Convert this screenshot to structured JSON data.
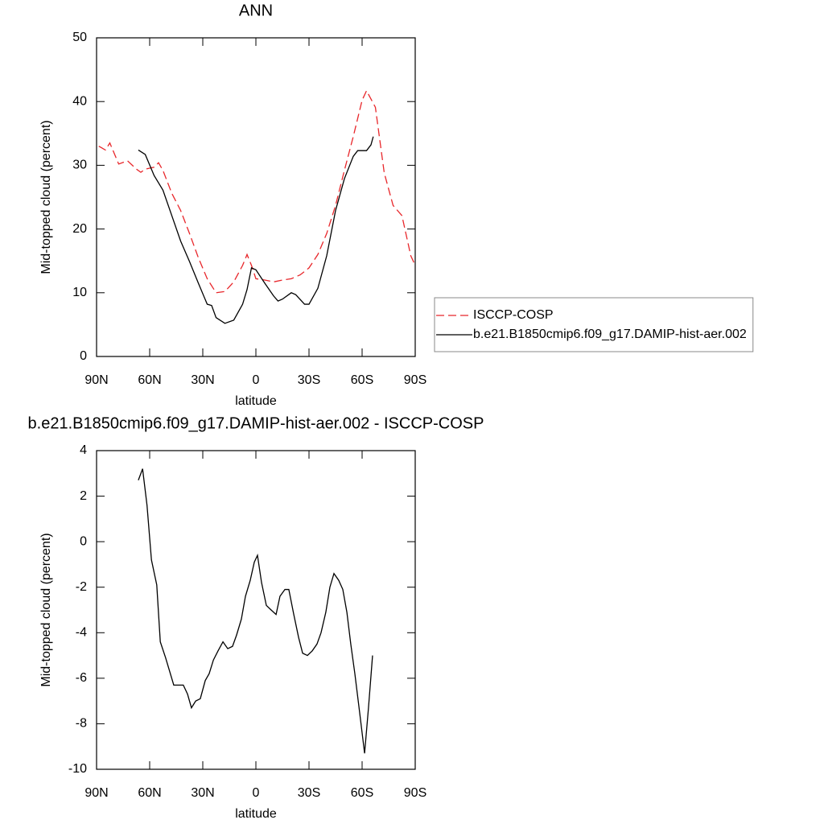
{
  "chart_data": [
    {
      "type": "line",
      "title": "ANN",
      "xlabel": "latitude",
      "ylabel": "Mid-topped cloud (percent)",
      "xlim": [
        90,
        -90
      ],
      "xticks": [
        {
          "value": 90,
          "label": "90N"
        },
        {
          "value": 60,
          "label": "60N"
        },
        {
          "value": 30,
          "label": "30N"
        },
        0,
        {
          "value": -30,
          "label": "30S"
        },
        {
          "value": -60,
          "label": "60S"
        },
        {
          "value": -90,
          "label": "90S"
        }
      ],
      "ylim": [
        0,
        50
      ],
      "yticks": [
        0,
        10,
        20,
        30,
        40,
        50
      ],
      "legend": "outside-right",
      "series": [
        {
          "name": "ISCCP-COSP",
          "color": "#e8262a",
          "dash": "dashed",
          "x": [
            88.75,
            85,
            82.5,
            77.5,
            72.5,
            67.5,
            65,
            62.5,
            57.5,
            55,
            52.5,
            47.5,
            42.5,
            37.5,
            32.5,
            27.5,
            22.5,
            17.5,
            12.5,
            7.5,
            5,
            2.5,
            0,
            -5,
            -10,
            -15,
            -20,
            -25,
            -30,
            -35,
            -40,
            -45,
            -50,
            -55,
            -60,
            -62.5,
            -67.5,
            -72.5,
            -77.5,
            -82.5,
            -87.5,
            -90
          ],
          "values": [
            33.0,
            32.4,
            33.5,
            30.2,
            30.7,
            29.4,
            28.9,
            29.4,
            29.7,
            30.4,
            29.2,
            25.6,
            22.9,
            19.3,
            15.5,
            12.2,
            10.0,
            10.2,
            11.7,
            14.3,
            16.0,
            14.3,
            12.2,
            12.0,
            11.7,
            12.0,
            12.2,
            12.8,
            13.9,
            16.0,
            19.3,
            23.7,
            29.2,
            34.5,
            40.2,
            41.7,
            39.1,
            28.8,
            23.7,
            22.1,
            15.8,
            14.3
          ]
        },
        {
          "name": "b.e21.B1850cmip6.f09_g17.DAMIP-hist-aer.002",
          "color": "#000000",
          "dash": "solid",
          "x": [
            66.4,
            62.5,
            57.5,
            52.5,
            47.5,
            42.5,
            37.5,
            32.5,
            27.5,
            25,
            22.5,
            17.5,
            12.5,
            7.5,
            5,
            2.5,
            0,
            -5,
            -10,
            -12.5,
            -15,
            -20,
            -22.5,
            -27.5,
            -30,
            -35,
            -40,
            -45,
            -50,
            -55,
            -57.5,
            -62.5,
            -65,
            -66.3
          ],
          "values": [
            32.4,
            31.7,
            28.4,
            26.1,
            22.1,
            18.1,
            14.9,
            11.5,
            8.2,
            8.0,
            6.1,
            5.2,
            5.7,
            8.2,
            10.5,
            13.9,
            13.6,
            11.5,
            9.5,
            8.7,
            9.0,
            10.0,
            9.7,
            8.2,
            8.2,
            10.7,
            15.8,
            22.9,
            27.9,
            31.4,
            32.3,
            32.3,
            33.2,
            34.5
          ]
        }
      ]
    },
    {
      "type": "line",
      "title": "b.e21.B1850cmip6.f09_g17.DAMIP-hist-aer.002 - ISCCP-COSP",
      "xlabel": "latitude",
      "ylabel": "Mid-topped cloud (percent)",
      "xlim": [
        90,
        -90
      ],
      "xticks": [
        {
          "value": 90,
          "label": "90N"
        },
        {
          "value": 60,
          "label": "60N"
        },
        {
          "value": 30,
          "label": "30N"
        },
        0,
        {
          "value": -30,
          "label": "30S"
        },
        {
          "value": -60,
          "label": "60S"
        },
        {
          "value": -90,
          "label": "90S"
        }
      ],
      "ylim": [
        -10,
        4
      ],
      "yticks": [
        -10,
        -8,
        -6,
        -4,
        -2,
        0,
        2,
        4
      ],
      "series": [
        {
          "color": "#000000",
          "dash": "solid",
          "x": [
            66.4,
            64,
            61.5,
            59,
            56,
            54,
            51,
            46.4,
            41,
            38.6,
            36.4,
            34,
            31.4,
            28.6,
            26.4,
            24,
            21.4,
            18.6,
            15.9,
            13.2,
            10.9,
            8.2,
            5.9,
            3.2,
            0.9,
            -0.9,
            -3.2,
            -5.9,
            -8.6,
            -11.4,
            -13.6,
            -16.4,
            -18.6,
            -21.4,
            -24.1,
            -26.4,
            -29.1,
            -31.8,
            -34.5,
            -36.8,
            -39.5,
            -41.8,
            -44.1,
            -46.8,
            -49.1,
            -51.4,
            -53.6,
            -55.9,
            -58.6,
            -61.4,
            -63.6,
            -65.9
          ],
          "values": [
            2.7,
            3.2,
            1.6,
            -0.8,
            -1.9,
            -4.4,
            -5.1,
            -6.3,
            -6.3,
            -6.7,
            -7.3,
            -7.0,
            -6.9,
            -6.1,
            -5.8,
            -5.2,
            -4.8,
            -4.4,
            -4.7,
            -4.6,
            -4.1,
            -3.4,
            -2.4,
            -1.7,
            -0.9,
            -0.6,
            -1.8,
            -2.8,
            -3.0,
            -3.2,
            -2.4,
            -2.1,
            -2.1,
            -3.2,
            -4.2,
            -4.9,
            -5.0,
            -4.8,
            -4.5,
            -4.0,
            -3.1,
            -2.0,
            -1.4,
            -1.7,
            -2.1,
            -3.1,
            -4.5,
            -5.8,
            -7.5,
            -9.3,
            -7.3,
            -5.0
          ]
        }
      ]
    }
  ]
}
